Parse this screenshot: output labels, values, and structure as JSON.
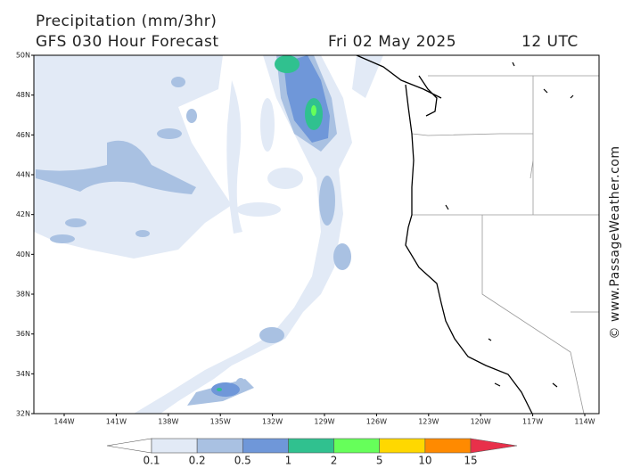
{
  "header": {
    "title": "Precipitation (mm/3hr)",
    "forecast": "GFS 030 Hour Forecast",
    "date": "Fri 02 May 2025",
    "time": "12 UTC"
  },
  "map": {
    "lat_labels": [
      "50N",
      "48N",
      "46N",
      "44N",
      "42N",
      "40N",
      "38N",
      "36N",
      "34N",
      "32N"
    ],
    "lon_labels": [
      "144W",
      "141W",
      "138W",
      "135W",
      "132W",
      "129W",
      "126W",
      "123W",
      "120W",
      "117W",
      "114W"
    ]
  },
  "legend": {
    "levels": [
      0.1,
      0.2,
      0.5,
      1,
      2,
      5,
      10,
      15
    ],
    "colors": [
      "#ffffff",
      "#e2eaf6",
      "#a9c1e2",
      "#6f97d9",
      "#30c18f",
      "#66ff5a",
      "#ffd800",
      "#ff8a00",
      "#e8304a"
    ]
  },
  "credit": "© www.PassageWeather.com"
}
